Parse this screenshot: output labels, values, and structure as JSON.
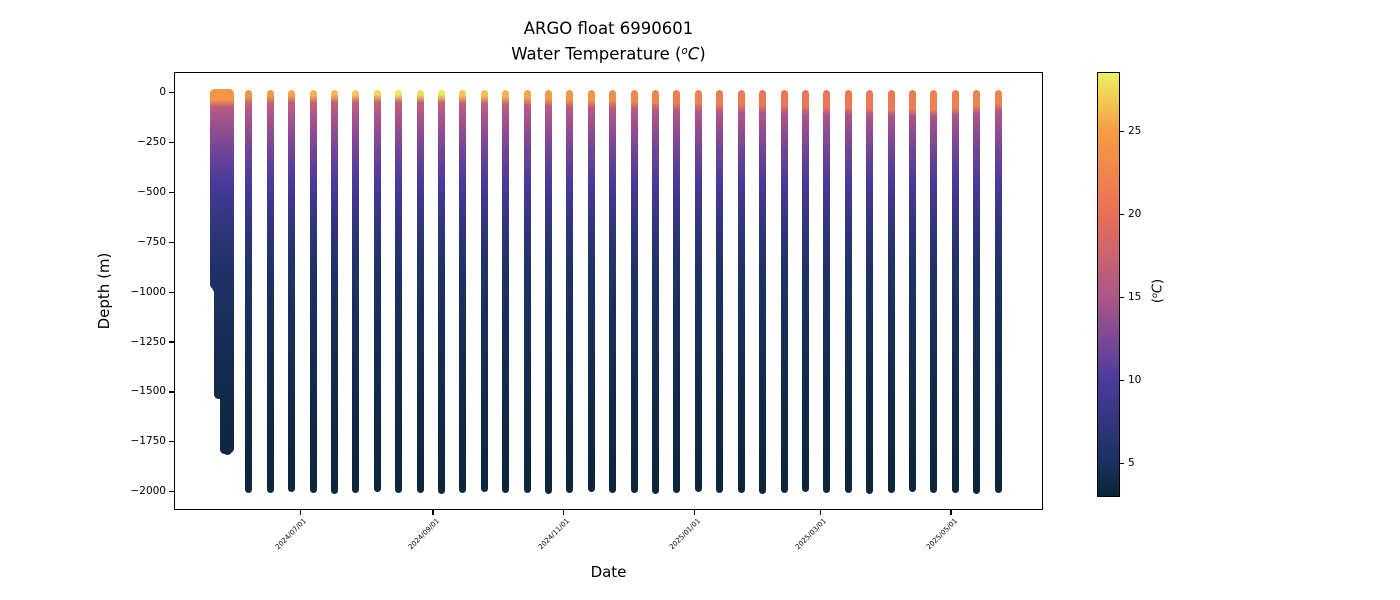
{
  "figure": {
    "title_line1": "ARGO float 6990601",
    "title2_pre": "Water Temperature (",
    "title2_sup": "o",
    "title2_italic": "C",
    "title2_post": ")",
    "background": "#ffffff"
  },
  "axes": {
    "xlabel": "Date",
    "ylabel": "Depth (m)",
    "x_range_days": 406,
    "x_ticks": [
      {
        "label": "2024/07/01",
        "day": 59
      },
      {
        "label": "2024/09/01",
        "day": 121
      },
      {
        "label": "2024/11/01",
        "day": 182
      },
      {
        "label": "2025/01/01",
        "day": 243
      },
      {
        "label": "2025/03/01",
        "day": 302
      },
      {
        "label": "2025/05/01",
        "day": 363
      }
    ],
    "y_ticks": [
      {
        "label": "0",
        "value": 0
      },
      {
        "label": "−250",
        "value": -250
      },
      {
        "label": "−500",
        "value": -500
      },
      {
        "label": "−750",
        "value": -750
      },
      {
        "label": "−1000",
        "value": -1000
      },
      {
        "label": "−1250",
        "value": -1250
      },
      {
        "label": "−1500",
        "value": -1500
      },
      {
        "label": "−1750",
        "value": -1750
      },
      {
        "label": "−2000",
        "value": -2000
      }
    ],
    "ylim": [
      -2092,
      104
    ]
  },
  "colorbar": {
    "vmin": 3.0,
    "vmax": 28.6,
    "ticks": [
      {
        "label": "5",
        "value": 5
      },
      {
        "label": "10",
        "value": 10
      },
      {
        "label": "15",
        "value": 15
      },
      {
        "label": "20",
        "value": 20
      },
      {
        "label": "25",
        "value": 25
      }
    ],
    "label_pre": "(",
    "label_sup": "o",
    "label_italic": "C",
    "label_post": ")",
    "colormap": "thermal",
    "colormap_stops": [
      [
        0.0,
        "#0a2334"
      ],
      [
        0.082,
        "#1a3161"
      ],
      [
        0.276,
        "#4c3b9e"
      ],
      [
        0.47,
        "#ad5689"
      ],
      [
        0.665,
        "#e86f57"
      ],
      [
        0.86,
        "#f79b43"
      ],
      [
        1.0,
        "#edf05f"
      ]
    ]
  },
  "chart_data": {
    "type": "scatter",
    "description": "Vertical temperature profiles of ARGO float 6990601; each column is one profile of depth vs date, point color = water temperature (degC)",
    "x_unit": "date",
    "y_unit": "depth (m, negative down)",
    "color_unit": "degC",
    "surface_offset_m": 5,
    "subsurface_profile_depth_temp": [
      [
        0,
        24.5
      ],
      [
        30,
        18.0
      ],
      [
        60,
        16.5
      ],
      [
        120,
        14.8
      ],
      [
        200,
        13.4
      ],
      [
        300,
        11.8
      ],
      [
        450,
        9.8
      ],
      [
        650,
        7.4
      ],
      [
        900,
        5.6
      ],
      [
        1200,
        4.7
      ],
      [
        1600,
        3.9
      ],
      [
        2100,
        3.3
      ]
    ],
    "profiles": [
      {
        "date": "2024/05/22",
        "day": 18.9,
        "max_depth_m": 960,
        "surface_temp_c": 24.5,
        "mixed_layer_m": 35,
        "group": "deployment"
      },
      {
        "date": "2024/05/23",
        "day": 19.8,
        "max_depth_m": 975,
        "surface_temp_c": 24.5,
        "mixed_layer_m": 35,
        "group": "deployment"
      },
      {
        "date": "2024/05/24",
        "day": 20.7,
        "max_depth_m": 1515,
        "surface_temp_c": 24.5,
        "mixed_layer_m": 35,
        "group": "deployment"
      },
      {
        "date": "2024/05/25",
        "day": 21.6,
        "max_depth_m": 955,
        "surface_temp_c": 24.5,
        "mixed_layer_m": 35,
        "group": "deployment"
      },
      {
        "date": "2024/05/26",
        "day": 22.5,
        "max_depth_m": 1520,
        "surface_temp_c": 24.5,
        "mixed_layer_m": 35,
        "group": "deployment"
      },
      {
        "date": "2024/05/27",
        "day": 23.4,
        "max_depth_m": 1790,
        "surface_temp_c": 24.5,
        "mixed_layer_m": 35,
        "group": "deployment"
      },
      {
        "date": "2024/05/28",
        "day": 24.3,
        "max_depth_m": 1510,
        "surface_temp_c": 24.5,
        "mixed_layer_m": 35,
        "group": "deployment"
      },
      {
        "date": "2024/05/29",
        "day": 25.2,
        "max_depth_m": 1795,
        "surface_temp_c": 24.5,
        "mixed_layer_m": 35,
        "group": "deployment"
      },
      {
        "date": "2024/05/30",
        "day": 26.1,
        "max_depth_m": 1785,
        "surface_temp_c": 24.5,
        "mixed_layer_m": 35,
        "group": "deployment"
      },
      {
        "date": "2024/06/07",
        "day": 35,
        "max_depth_m": 1990,
        "surface_temp_c": 24.5,
        "mixed_layer_m": 18,
        "group": "cycle"
      },
      {
        "date": "2024/06/17",
        "day": 45,
        "max_depth_m": 1990,
        "surface_temp_c": 25.0,
        "mixed_layer_m": 15,
        "group": "cycle"
      },
      {
        "date": "2024/06/27",
        "day": 55,
        "max_depth_m": 1985,
        "surface_temp_c": 25.5,
        "mixed_layer_m": 12,
        "group": "cycle"
      },
      {
        "date": "2024/07/07",
        "day": 65,
        "max_depth_m": 1990,
        "surface_temp_c": 26.0,
        "mixed_layer_m": 12,
        "group": "cycle"
      },
      {
        "date": "2024/07/17",
        "day": 75,
        "max_depth_m": 1995,
        "surface_temp_c": 26.5,
        "mixed_layer_m": 10,
        "group": "cycle"
      },
      {
        "date": "2024/07/27",
        "day": 85,
        "max_depth_m": 1990,
        "surface_temp_c": 27.0,
        "mixed_layer_m": 10,
        "group": "cycle"
      },
      {
        "date": "2024/08/06",
        "day": 95,
        "max_depth_m": 1985,
        "surface_temp_c": 27.5,
        "mixed_layer_m": 10,
        "group": "cycle"
      },
      {
        "date": "2024/08/16",
        "day": 105,
        "max_depth_m": 1990,
        "surface_temp_c": 28.3,
        "mixed_layer_m": 10,
        "group": "cycle"
      },
      {
        "date": "2024/08/26",
        "day": 115,
        "max_depth_m": 1990,
        "surface_temp_c": 27.8,
        "mixed_layer_m": 12,
        "group": "cycle"
      },
      {
        "date": "2024/09/05",
        "day": 125,
        "max_depth_m": 1995,
        "surface_temp_c": 28.2,
        "mixed_layer_m": 12,
        "group": "cycle"
      },
      {
        "date": "2024/09/15",
        "day": 135,
        "max_depth_m": 1990,
        "surface_temp_c": 27.0,
        "mixed_layer_m": 15,
        "group": "cycle"
      },
      {
        "date": "2024/09/25",
        "day": 145,
        "max_depth_m": 1985,
        "surface_temp_c": 26.5,
        "mixed_layer_m": 18,
        "group": "cycle"
      },
      {
        "date": "2024/10/05",
        "day": 155,
        "max_depth_m": 1990,
        "surface_temp_c": 26.0,
        "mixed_layer_m": 22,
        "group": "cycle"
      },
      {
        "date": "2024/10/15",
        "day": 165,
        "max_depth_m": 1990,
        "surface_temp_c": 25.5,
        "mixed_layer_m": 25,
        "group": "cycle"
      },
      {
        "date": "2024/10/25",
        "day": 175,
        "max_depth_m": 1995,
        "surface_temp_c": 25.0,
        "mixed_layer_m": 30,
        "group": "cycle"
      },
      {
        "date": "2024/11/04",
        "day": 185,
        "max_depth_m": 1990,
        "surface_temp_c": 24.5,
        "mixed_layer_m": 35,
        "group": "cycle"
      },
      {
        "date": "2024/11/14",
        "day": 195,
        "max_depth_m": 1985,
        "surface_temp_c": 24.0,
        "mixed_layer_m": 38,
        "group": "cycle"
      },
      {
        "date": "2024/11/24",
        "day": 205,
        "max_depth_m": 1990,
        "surface_temp_c": 23.5,
        "mixed_layer_m": 40,
        "group": "cycle"
      },
      {
        "date": "2024/12/04",
        "day": 215,
        "max_depth_m": 1990,
        "surface_temp_c": 23.0,
        "mixed_layer_m": 45,
        "group": "cycle"
      },
      {
        "date": "2024/12/14",
        "day": 225,
        "max_depth_m": 1995,
        "surface_temp_c": 22.5,
        "mixed_layer_m": 48,
        "group": "cycle"
      },
      {
        "date": "2024/12/24",
        "day": 235,
        "max_depth_m": 1990,
        "surface_temp_c": 22.0,
        "mixed_layer_m": 50,
        "group": "cycle"
      },
      {
        "date": "2025/01/03",
        "day": 245,
        "max_depth_m": 1985,
        "surface_temp_c": 21.8,
        "mixed_layer_m": 55,
        "group": "cycle"
      },
      {
        "date": "2025/01/13",
        "day": 255,
        "max_depth_m": 1990,
        "surface_temp_c": 21.5,
        "mixed_layer_m": 58,
        "group": "cycle"
      },
      {
        "date": "2025/01/23",
        "day": 265,
        "max_depth_m": 1990,
        "surface_temp_c": 21.3,
        "mixed_layer_m": 60,
        "group": "cycle"
      },
      {
        "date": "2025/02/02",
        "day": 275,
        "max_depth_m": 1995,
        "surface_temp_c": 21.0,
        "mixed_layer_m": 62,
        "group": "cycle"
      },
      {
        "date": "2025/02/12",
        "day": 285,
        "max_depth_m": 1990,
        "surface_temp_c": 20.8,
        "mixed_layer_m": 65,
        "group": "cycle"
      },
      {
        "date": "2025/02/22",
        "day": 295,
        "max_depth_m": 1985,
        "surface_temp_c": 20.8,
        "mixed_layer_m": 68,
        "group": "cycle"
      },
      {
        "date": "2025/03/04",
        "day": 305,
        "max_depth_m": 1990,
        "surface_temp_c": 21.0,
        "mixed_layer_m": 72,
        "group": "cycle"
      },
      {
        "date": "2025/03/14",
        "day": 315,
        "max_depth_m": 1990,
        "surface_temp_c": 21.0,
        "mixed_layer_m": 75,
        "group": "cycle"
      },
      {
        "date": "2025/03/24",
        "day": 325,
        "max_depth_m": 1995,
        "surface_temp_c": 21.2,
        "mixed_layer_m": 78,
        "group": "cycle"
      },
      {
        "date": "2025/04/03",
        "day": 335,
        "max_depth_m": 1990,
        "surface_temp_c": 21.3,
        "mixed_layer_m": 82,
        "group": "cycle"
      },
      {
        "date": "2025/04/13",
        "day": 345,
        "max_depth_m": 1985,
        "surface_temp_c": 21.5,
        "mixed_layer_m": 85,
        "group": "cycle"
      },
      {
        "date": "2025/04/23",
        "day": 355,
        "max_depth_m": 1990,
        "surface_temp_c": 21.8,
        "mixed_layer_m": 85,
        "group": "cycle"
      },
      {
        "date": "2025/05/03",
        "day": 365,
        "max_depth_m": 1990,
        "surface_temp_c": 22.0,
        "mixed_layer_m": 75,
        "group": "cycle"
      },
      {
        "date": "2025/05/13",
        "day": 375,
        "max_depth_m": 1995,
        "surface_temp_c": 22.3,
        "mixed_layer_m": 65,
        "group": "cycle"
      },
      {
        "date": "2025/05/23",
        "day": 385,
        "max_depth_m": 1990,
        "surface_temp_c": 22.5,
        "mixed_layer_m": 55,
        "group": "cycle"
      }
    ]
  }
}
